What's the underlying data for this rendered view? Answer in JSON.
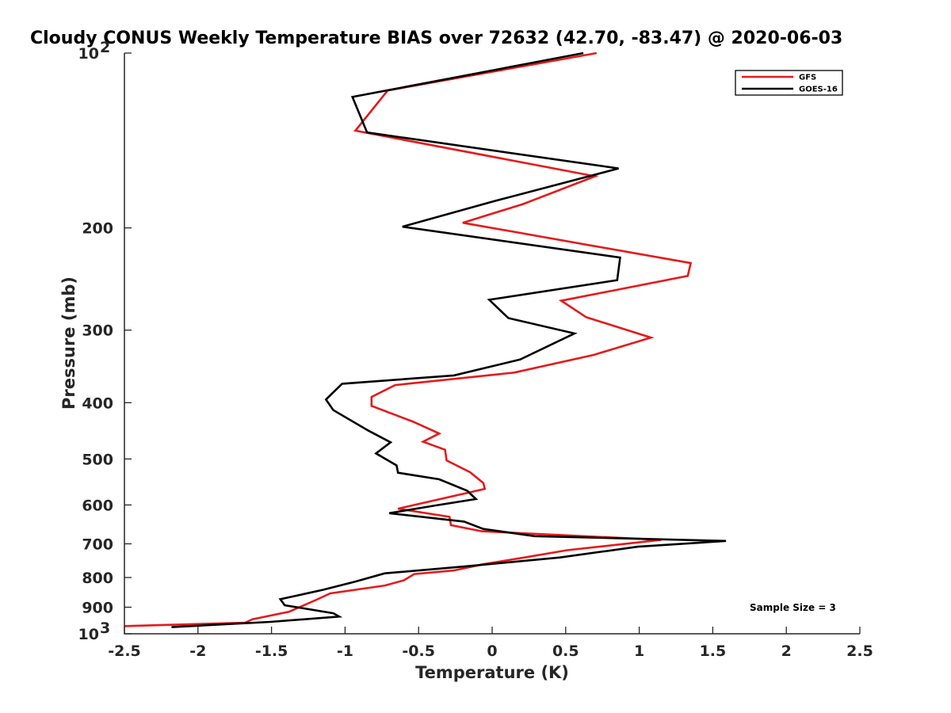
{
  "chart_data": {
    "type": "line",
    "title": "Cloudy CONUS Weekly Temperature BIAS over 72632 (42.70, -83.47) @ 2020-06-03",
    "xlabel": "Temperature (K)",
    "ylabel": "Pressure (mb)",
    "xlim": [
      -2.5,
      2.5
    ],
    "ylim": [
      100,
      1000
    ],
    "y_scale": "log",
    "y_reversed": true,
    "grid": false,
    "legend_position": "top-right",
    "x_ticks": [
      -2.5,
      -2,
      -1.5,
      -1,
      -0.5,
      0,
      0.5,
      1,
      1.5,
      2,
      2.5
    ],
    "x_tick_labels": [
      "-2.5",
      "-2",
      "-1.5",
      "-1",
      "-0.5",
      "0",
      "0.5",
      "1",
      "1.5",
      "2",
      "2.5"
    ],
    "y_ticks": [
      100,
      200,
      300,
      400,
      500,
      600,
      700,
      800,
      900,
      1000
    ],
    "y_tick_labels": [
      {
        "base": "10",
        "exp": "2"
      },
      {
        "base": "200",
        "exp": ""
      },
      {
        "base": "300",
        "exp": ""
      },
      {
        "base": "400",
        "exp": ""
      },
      {
        "base": "500",
        "exp": ""
      },
      {
        "base": "600",
        "exp": ""
      },
      {
        "base": "700",
        "exp": ""
      },
      {
        "base": "800",
        "exp": ""
      },
      {
        "base": "900",
        "exp": ""
      },
      {
        "base": "10",
        "exp": "3"
      }
    ],
    "annotation": "Sample Size = 3",
    "series": [
      {
        "name": "GFS",
        "color": "#e41a1c",
        "points": [
          [
            0.71,
            100
          ],
          [
            -0.71,
            116
          ],
          [
            -0.93,
            136
          ],
          [
            0.7,
            163
          ],
          [
            0.21,
            182
          ],
          [
            -0.2,
            196
          ],
          [
            1.35,
            230
          ],
          [
            1.33,
            242
          ],
          [
            0.47,
            267
          ],
          [
            0.64,
            285
          ],
          [
            1.08,
            309
          ],
          [
            0.69,
            331
          ],
          [
            0.15,
            355
          ],
          [
            -0.66,
            373
          ],
          [
            -0.82,
            391
          ],
          [
            -0.82,
            405
          ],
          [
            -0.54,
            431
          ],
          [
            -0.36,
            452
          ],
          [
            -0.47,
            467
          ],
          [
            -0.32,
            482
          ],
          [
            -0.31,
            503
          ],
          [
            -0.15,
            527
          ],
          [
            -0.06,
            550
          ],
          [
            -0.05,
            563
          ],
          [
            -0.64,
            609
          ],
          [
            -0.29,
            629
          ],
          [
            -0.28,
            650
          ],
          [
            -0.07,
            666
          ],
          [
            1.15,
            689
          ],
          [
            0.51,
            718
          ],
          [
            0.22,
            739
          ],
          [
            -0.06,
            759
          ],
          [
            -0.26,
            778
          ],
          [
            -0.53,
            789
          ],
          [
            -0.6,
            809
          ],
          [
            -0.73,
            826
          ],
          [
            -1.1,
            852
          ],
          [
            -1.2,
            875
          ],
          [
            -1.38,
            916
          ],
          [
            -1.63,
            944
          ],
          [
            -1.68,
            957
          ],
          [
            -2.5,
            970
          ]
        ]
      },
      {
        "name": "GOES-16",
        "color": "#000000",
        "points": [
          [
            0.62,
            100
          ],
          [
            -0.95,
            119
          ],
          [
            -0.85,
            137
          ],
          [
            0.86,
            158
          ],
          [
            0.01,
            180
          ],
          [
            -0.61,
            199
          ],
          [
            0.87,
            225
          ],
          [
            0.85,
            246
          ],
          [
            -0.02,
            266
          ],
          [
            0.11,
            286
          ],
          [
            0.56,
            304
          ],
          [
            0.19,
            337
          ],
          [
            -0.26,
            359
          ],
          [
            -1.02,
            371
          ],
          [
            -1.13,
            395
          ],
          [
            -1.08,
            412
          ],
          [
            -0.84,
            447
          ],
          [
            -0.69,
            468
          ],
          [
            -0.79,
            489
          ],
          [
            -0.65,
            513
          ],
          [
            -0.64,
            528
          ],
          [
            -0.36,
            542
          ],
          [
            -0.17,
            567
          ],
          [
            -0.11,
            586
          ],
          [
            -0.38,
            601
          ],
          [
            -0.7,
            620
          ],
          [
            -0.19,
            641
          ],
          [
            -0.06,
            660
          ],
          [
            0.29,
            679
          ],
          [
            1.59,
            692
          ],
          [
            0.99,
            708
          ],
          [
            0.46,
            739
          ],
          [
            -0.19,
            766
          ],
          [
            -0.73,
            787
          ],
          [
            -0.93,
            813
          ],
          [
            -1.15,
            840
          ],
          [
            -1.44,
            872
          ],
          [
            -1.41,
            893
          ],
          [
            -1.08,
            922
          ],
          [
            -1.04,
            934
          ],
          [
            -1.51,
            954
          ],
          [
            -2.18,
            974
          ]
        ]
      }
    ]
  }
}
